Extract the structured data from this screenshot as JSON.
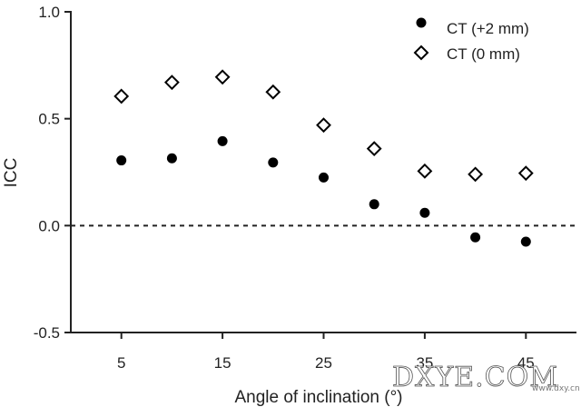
{
  "chart_data": {
    "type": "scatter",
    "xlabel": "Angle of inclination (°)",
    "ylabel": "ICC",
    "xlim": [
      0,
      50
    ],
    "ylim": [
      -0.5,
      1.0
    ],
    "x_ticks": [
      5,
      15,
      25,
      35,
      45
    ],
    "x_tick_labels": [
      "5",
      "15",
      "25",
      "35",
      "45"
    ],
    "y_ticks": [
      -0.5,
      0.0,
      0.5,
      1.0
    ],
    "y_tick_labels": [
      "-0.5",
      "0.0",
      "0.5",
      "1.0"
    ],
    "reference_line": {
      "y": 0.0,
      "style": "dashed"
    },
    "legend_position": "top-right",
    "grid": false,
    "series": [
      {
        "name": "CT (+2 mm)",
        "marker": "filled-circle",
        "color": "#000000",
        "x": [
          5,
          10,
          15,
          20,
          25,
          30,
          35,
          40,
          45
        ],
        "y": [
          0.305,
          0.315,
          0.395,
          0.295,
          0.225,
          0.1,
          0.06,
          -0.055,
          -0.075
        ]
      },
      {
        "name": "CT (0 mm)",
        "marker": "open-diamond",
        "color": "#000000",
        "x": [
          5,
          10,
          15,
          20,
          25,
          30,
          35,
          40,
          45
        ],
        "y": [
          0.605,
          0.67,
          0.695,
          0.625,
          0.47,
          0.36,
          0.255,
          0.24,
          0.245
        ]
      }
    ]
  },
  "watermark": {
    "main": "DXYE.COM",
    "sub": "www.dxy.cn"
  }
}
